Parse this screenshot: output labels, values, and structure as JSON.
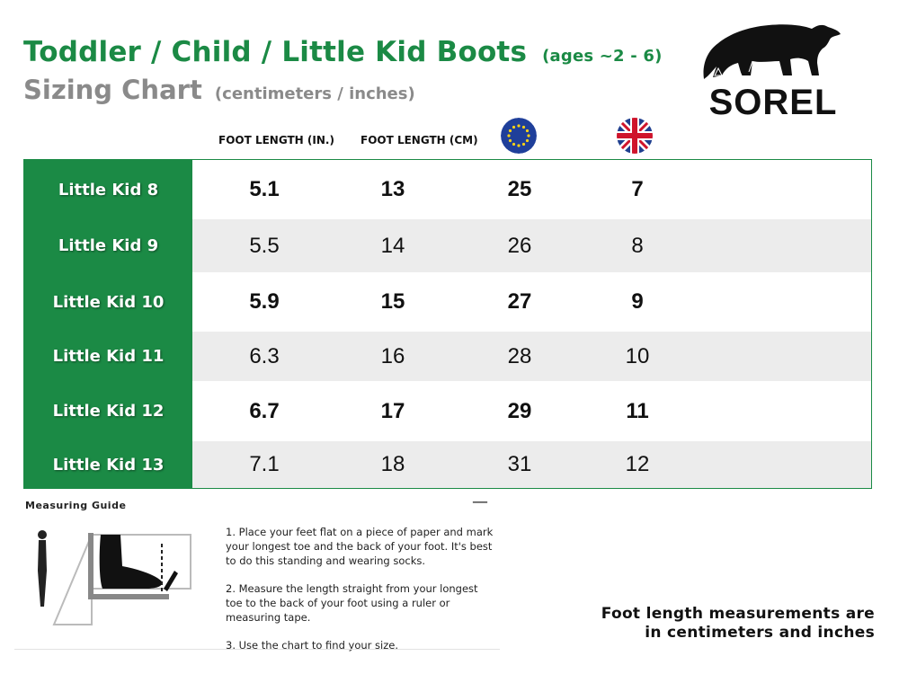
{
  "header": {
    "title": "Toddler / Child / Little Kid Boots",
    "ages": "(ages ~2 - 6)",
    "subtitle": "Sizing Chart",
    "units": "(centimeters / inches)"
  },
  "brand": {
    "name": "SOREL",
    "logo_icon": "polar-bear-icon"
  },
  "columns": {
    "foot_length_in": "FOOT LENGTH (IN.)",
    "foot_length_cm": "FOOT LENGTH (CM)",
    "eu_icon": "eu-flag-icon",
    "uk_icon": "uk-flag-icon"
  },
  "colors": {
    "brand_green": "#1b8a45",
    "row_shade": "#ececec",
    "subtitle_gray": "#8a8a8a"
  },
  "chart_data": {
    "type": "table",
    "columns": [
      "FOOT LENGTH (IN.)",
      "FOOT LENGTH (CM)",
      "EU",
      "UK"
    ],
    "rows": [
      {
        "label": "Little Kid 8",
        "in": "5.1",
        "cm": "13",
        "eu": "25",
        "uk": "7"
      },
      {
        "label": "Little Kid 9",
        "in": "5.5",
        "cm": "14",
        "eu": "26",
        "uk": "8"
      },
      {
        "label": "Little Kid 10",
        "in": "5.9",
        "cm": "15",
        "eu": "27",
        "uk": "9"
      },
      {
        "label": "Little Kid 11",
        "in": "6.3",
        "cm": "16",
        "eu": "28",
        "uk": "10"
      },
      {
        "label": "Little Kid 12",
        "in": "6.7",
        "cm": "17",
        "eu": "29",
        "uk": "11"
      },
      {
        "label": "Little Kid 13",
        "in": "7.1",
        "cm": "18",
        "eu": "31",
        "uk": "12"
      }
    ]
  },
  "guide": {
    "title": "Measuring Guide",
    "collapse_symbol": "—",
    "illustration_icon": "foot-measuring-icon",
    "steps": [
      "1. Place your feet flat on a piece of paper and mark your longest toe and the back of your foot. It's best to do this standing and wearing socks.",
      "2. Measure the length straight from your longest toe to the back of your foot using a ruler or measuring tape.",
      "3. Use the chart to find your size."
    ]
  },
  "note": {
    "line1": "Foot length measurements are",
    "line2": "in centimeters and inches"
  }
}
